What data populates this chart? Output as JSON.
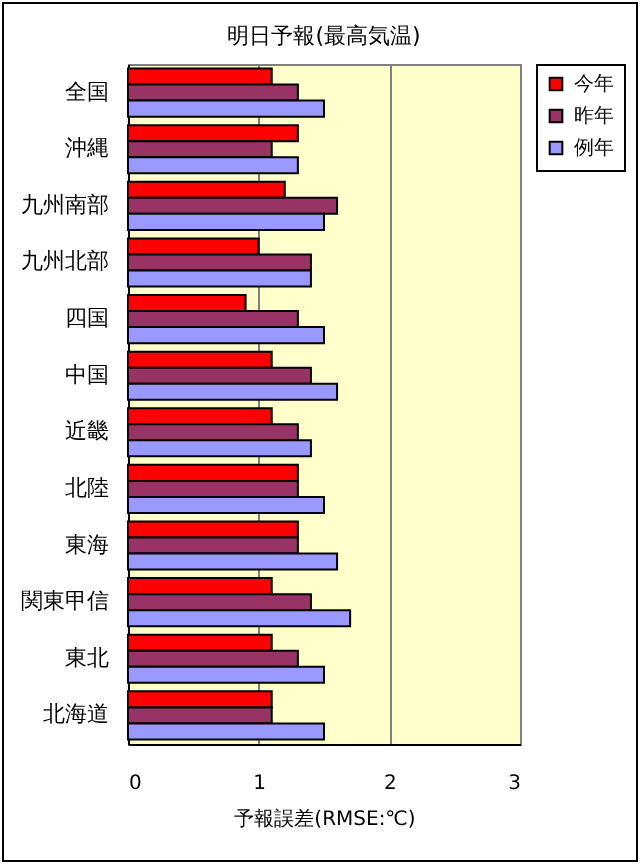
{
  "chart_data": {
    "type": "bar",
    "orientation": "horizontal",
    "title": "明日予報(最高気温)",
    "xlabel": "予報誤差(RMSE:℃)",
    "categories": [
      "全国",
      "沖縄",
      "九州南部",
      "九州北部",
      "四国",
      "中国",
      "近畿",
      "北陸",
      "東海",
      "関東甲信",
      "東北",
      "北海道"
    ],
    "series": [
      {
        "name": "今年",
        "color": "#ff0000",
        "values": [
          1.1,
          1.3,
          1.2,
          1.0,
          0.9,
          1.1,
          1.1,
          1.3,
          1.3,
          1.1,
          1.1,
          1.1
        ]
      },
      {
        "name": "昨年",
        "color": "#993366",
        "values": [
          1.3,
          1.1,
          1.6,
          1.4,
          1.3,
          1.4,
          1.3,
          1.3,
          1.3,
          1.4,
          1.3,
          1.1
        ]
      },
      {
        "name": "例年",
        "color": "#9999ff",
        "values": [
          1.5,
          1.3,
          1.5,
          1.4,
          1.5,
          1.6,
          1.4,
          1.5,
          1.6,
          1.7,
          1.5,
          1.5
        ]
      }
    ],
    "xlim": [
      0,
      3
    ],
    "xticks": [
      0,
      1,
      2,
      3
    ],
    "grid": "x",
    "legend": "top right"
  }
}
